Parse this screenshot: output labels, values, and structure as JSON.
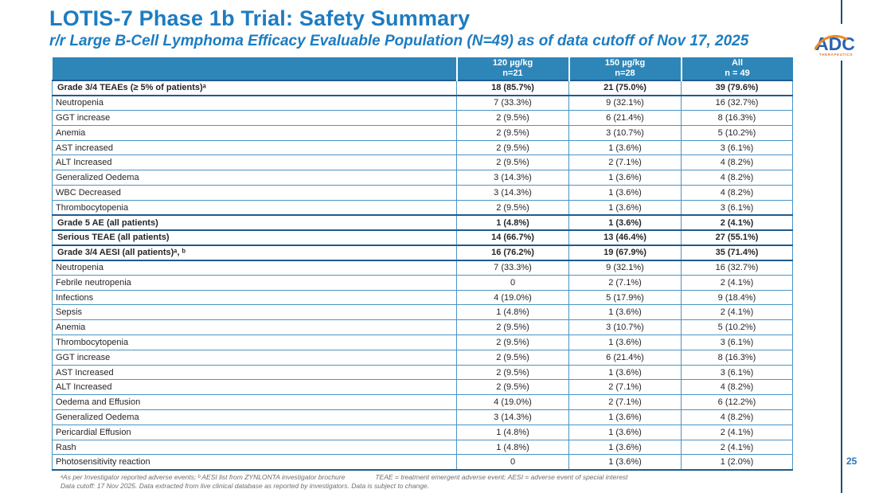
{
  "slide": {
    "title": "LOTIS-7 Phase 1b Trial: Safety Summary",
    "subtitle": "r/r Large B-Cell Lymphoma Efficacy Evaluable Population (N=49) as of data cutoff of Nov 17, 2025",
    "page_number": "25",
    "logo": {
      "text": "ADC",
      "subtext": "THERAPEUTICS"
    }
  },
  "colors": {
    "title_blue": "#1d7cc0",
    "header_bg": "#2e86b8",
    "row_border": "#4a94c4",
    "section_border": "#1d5c8f",
    "right_rule_navy": "#1f4e79",
    "logo_orange": "#e87722",
    "footnote_gray": "#6e6e6e"
  },
  "table": {
    "columns": [
      {
        "line1": "120 µg/kg",
        "line2": "n=21"
      },
      {
        "line1": "150 µg/kg",
        "line2": "n=28"
      },
      {
        "line1": "All",
        "line2": "n = 49"
      }
    ],
    "rows": [
      {
        "label": "Grade 3/4 TEAEs (≥ 5% of patients)ᵃ",
        "bold": true,
        "values": [
          "18 (85.7%)",
          "21 (75.0%)",
          "39 (79.6%)"
        ]
      },
      {
        "label": "Neutropenia",
        "bold": false,
        "values": [
          "7 (33.3%)",
          "9 (32.1%)",
          "16 (32.7%)"
        ]
      },
      {
        "label": "GGT increase",
        "bold": false,
        "values": [
          "2 (9.5%)",
          "6 (21.4%)",
          "8 (16.3%)"
        ]
      },
      {
        "label": "Anemia",
        "bold": false,
        "values": [
          "2 (9.5%)",
          "3 (10.7%)",
          "5 (10.2%)"
        ]
      },
      {
        "label": "AST increased",
        "bold": false,
        "values": [
          "2 (9.5%)",
          "1 (3.6%)",
          "3 (6.1%)"
        ]
      },
      {
        "label": "ALT Increased",
        "bold": false,
        "values": [
          "2 (9.5%)",
          "2 (7.1%)",
          "4 (8.2%)"
        ]
      },
      {
        "label": "Generalized Oedema",
        "bold": false,
        "values": [
          "3 (14.3%)",
          "1 (3.6%)",
          "4 (8.2%)"
        ]
      },
      {
        "label": "WBC Decreased",
        "bold": false,
        "values": [
          "3 (14.3%)",
          "1 (3.6%)",
          "4 (8.2%)"
        ]
      },
      {
        "label": "Thrombocytopenia",
        "bold": false,
        "values": [
          "2 (9.5%)",
          "1 (3.6%)",
          "3 (6.1%)"
        ]
      },
      {
        "label": "Grade 5 AE (all patients)",
        "bold": true,
        "values": [
          "1 (4.8%)",
          "1 (3.6%)",
          "2 (4.1%)"
        ]
      },
      {
        "label": "Serious TEAE (all patients)",
        "bold": true,
        "values": [
          "14 (66.7%)",
          "13 (46.4%)",
          "27 (55.1%)"
        ]
      },
      {
        "label": "Grade 3/4 AESI (all patients)ᵃ, ᵇ",
        "bold": true,
        "values": [
          "16 (76.2%)",
          "19 (67.9%)",
          "35 (71.4%)"
        ]
      },
      {
        "label": "Neutropenia",
        "bold": false,
        "values": [
          "7 (33.3%)",
          "9 (32.1%)",
          "16 (32.7%)"
        ]
      },
      {
        "label": "Febrile neutropenia",
        "bold": false,
        "values": [
          "0",
          "2 (7.1%)",
          "2 (4.1%)"
        ]
      },
      {
        "label": "Infections",
        "bold": false,
        "values": [
          "4 (19.0%)",
          "5 (17.9%)",
          "9 (18.4%)"
        ]
      },
      {
        "label": "Sepsis",
        "bold": false,
        "values": [
          "1 (4.8%)",
          "1 (3.6%)",
          "2 (4.1%)"
        ]
      },
      {
        "label": "Anemia",
        "bold": false,
        "values": [
          "2 (9.5%)",
          "3 (10.7%)",
          "5 (10.2%)"
        ]
      },
      {
        "label": "Thrombocytopenia",
        "bold": false,
        "values": [
          "2 (9.5%)",
          "1 (3.6%)",
          "3 (6.1%)"
        ]
      },
      {
        "label": "GGT increase",
        "bold": false,
        "values": [
          "2 (9.5%)",
          "6 (21.4%)",
          "8 (16.3%)"
        ]
      },
      {
        "label": "AST Increased",
        "bold": false,
        "values": [
          "2 (9.5%)",
          "1 (3.6%)",
          "3 (6.1%)"
        ]
      },
      {
        "label": "ALT Increased",
        "bold": false,
        "values": [
          "2 (9.5%)",
          "2 (7.1%)",
          "4 (8.2%)"
        ]
      },
      {
        "label": "Oedema and Effusion",
        "bold": false,
        "values": [
          "4 (19.0%)",
          "2 (7.1%)",
          "6 (12.2%)"
        ]
      },
      {
        "label": "Generalized Oedema",
        "bold": false,
        "values": [
          "3 (14.3%)",
          "1 (3.6%)",
          "4 (8.2%)"
        ]
      },
      {
        "label": "Pericardial Effusion",
        "bold": false,
        "values": [
          "1 (4.8%)",
          "1 (3.6%)",
          "2 (4.1%)"
        ]
      },
      {
        "label": "Rash",
        "bold": false,
        "values": [
          "1 (4.8%)",
          "1 (3.6%)",
          "2 (4.1%)"
        ]
      },
      {
        "label": "Photosensitivity reaction",
        "bold": false,
        "values": [
          "0",
          "1 (3.6%)",
          "1 (2.0%)"
        ]
      }
    ]
  },
  "footnotes": {
    "line1_left": "ᵃAs per Investigator reported adverse events; ᵇ AESI list from ZYNLONTA investigator brochure",
    "line1_right": "TEAE = treatment emergent adverse event; AESI = adverse event of special interest",
    "line2": "Data cutoff: 17 Nov 2025. Data extracted from live clinical database as reported by investigators. Data is subject to change."
  }
}
